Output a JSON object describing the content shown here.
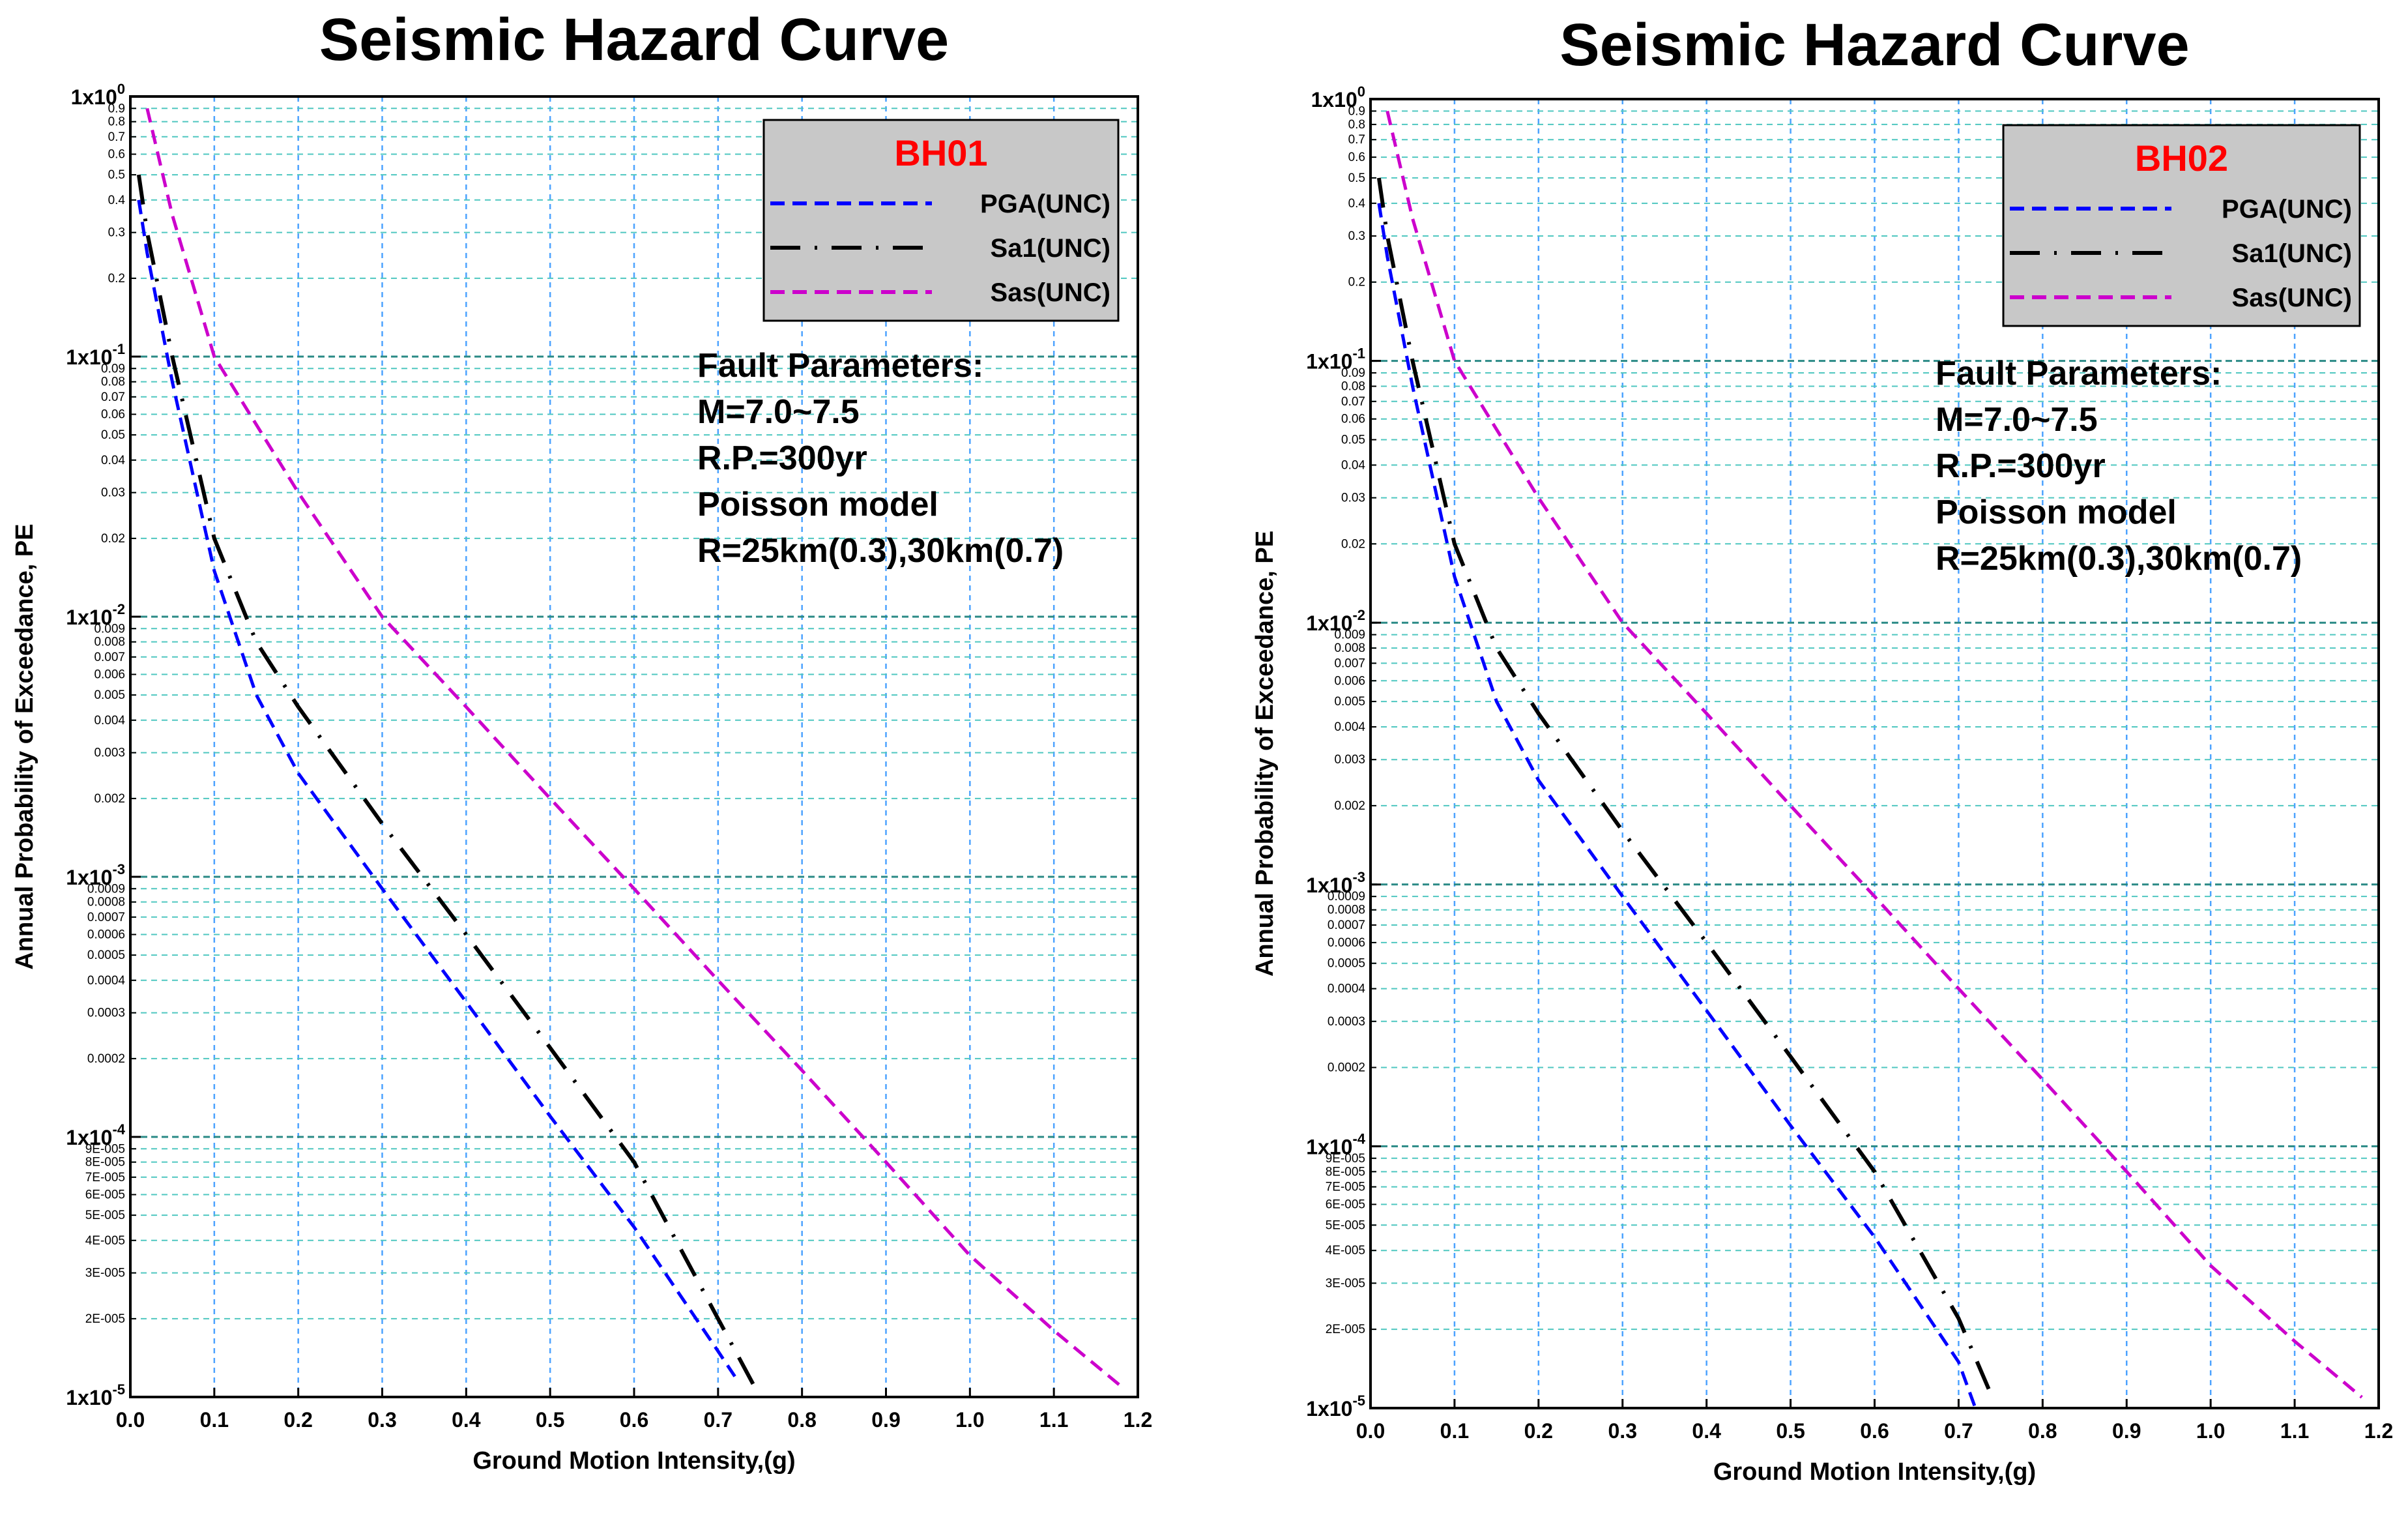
{
  "chart_data": [
    {
      "type": "line",
      "title": "Seismic Hazard Curve",
      "xlabel": "Ground Motion Intensity,(g)",
      "ylabel": "Annual Probability of Exceedance, PE",
      "xlim": [
        0.0,
        1.2
      ],
      "ylim": [
        1e-05,
        1
      ],
      "yscale": "log",
      "x_ticks": [
        "0.0",
        "0.1",
        "0.2",
        "0.3",
        "0.4",
        "0.5",
        "0.6",
        "0.7",
        "0.8",
        "0.9",
        "1.0",
        "1.1",
        "1.2"
      ],
      "y_major_labels": [
        {
          "value": 1,
          "base": "1x10",
          "exp": "0"
        },
        {
          "value": 0.1,
          "base": "1x10",
          "exp": "-1"
        },
        {
          "value": 0.01,
          "base": "1x10",
          "exp": "-2"
        },
        {
          "value": 0.001,
          "base": "1x10",
          "exp": "-3"
        },
        {
          "value": 0.0001,
          "base": "1x10",
          "exp": "-4"
        },
        {
          "value": 1e-05,
          "base": "1x10",
          "exp": "-5"
        }
      ],
      "y_minor_labels": [
        {
          "value": 0.9,
          "label": "0.9"
        },
        {
          "value": 0.8,
          "label": "0.8"
        },
        {
          "value": 0.7,
          "label": "0.7"
        },
        {
          "value": 0.6,
          "label": "0.6"
        },
        {
          "value": 0.5,
          "label": "0.5"
        },
        {
          "value": 0.4,
          "label": "0.4"
        },
        {
          "value": 0.3,
          "label": "0.3"
        },
        {
          "value": 0.2,
          "label": "0.2"
        },
        {
          "value": 0.09,
          "label": "0.09"
        },
        {
          "value": 0.08,
          "label": "0.08"
        },
        {
          "value": 0.07,
          "label": "0.07"
        },
        {
          "value": 0.06,
          "label": "0.06"
        },
        {
          "value": 0.05,
          "label": "0.05"
        },
        {
          "value": 0.04,
          "label": "0.04"
        },
        {
          "value": 0.03,
          "label": "0.03"
        },
        {
          "value": 0.02,
          "label": "0.02"
        },
        {
          "value": 0.009,
          "label": "0.009"
        },
        {
          "value": 0.008,
          "label": "0.008"
        },
        {
          "value": 0.007,
          "label": "0.007"
        },
        {
          "value": 0.006,
          "label": "0.006"
        },
        {
          "value": 0.005,
          "label": "0.005"
        },
        {
          "value": 0.004,
          "label": "0.004"
        },
        {
          "value": 0.003,
          "label": "0.003"
        },
        {
          "value": 0.002,
          "label": "0.002"
        },
        {
          "value": 0.0009,
          "label": "0.0009"
        },
        {
          "value": 0.0008,
          "label": "0.0008"
        },
        {
          "value": 0.0007,
          "label": "0.0007"
        },
        {
          "value": 0.0006,
          "label": "0.0006"
        },
        {
          "value": 0.0005,
          "label": "0.0005"
        },
        {
          "value": 0.0004,
          "label": "0.0004"
        },
        {
          "value": 0.0003,
          "label": "0.0003"
        },
        {
          "value": 0.0002,
          "label": "0.0002"
        },
        {
          "value": 9e-05,
          "label": "9E-005"
        },
        {
          "value": 8e-05,
          "label": "8E-005"
        },
        {
          "value": 7e-05,
          "label": "7E-005"
        },
        {
          "value": 6e-05,
          "label": "6E-005"
        },
        {
          "value": 5e-05,
          "label": "5E-005"
        },
        {
          "value": 4e-05,
          "label": "4E-005"
        },
        {
          "value": 3e-05,
          "label": "3E-005"
        },
        {
          "value": 2e-05,
          "label": "2E-005"
        }
      ],
      "legend": {
        "title": "BH01",
        "title_color": "#ff0000",
        "placement": "top-right"
      },
      "annotation": [
        "Fault Parameters:",
        "M=7.0~7.5",
        "R.P.=300yr",
        "Poisson model",
        "R=25km(0.3),30km(0.7)"
      ],
      "series": [
        {
          "name": "PGA(UNC)",
          "color": "#0000ff",
          "dash": "dash",
          "x": [
            0.01,
            0.02,
            0.05,
            0.1,
            0.15,
            0.2,
            0.3,
            0.4,
            0.5,
            0.6,
            0.7,
            0.72
          ],
          "y": [
            0.4,
            0.25,
            0.08,
            0.015,
            0.005,
            0.0025,
            0.0009,
            0.00033,
            0.00012,
            4.5e-05,
            1.5e-05,
            1.2e-05
          ]
        },
        {
          "name": "Sa1(UNC)",
          "color": "#000000",
          "dash": "dashdot",
          "x": [
            0.01,
            0.02,
            0.05,
            0.1,
            0.15,
            0.2,
            0.3,
            0.4,
            0.5,
            0.6,
            0.7,
            0.75
          ],
          "y": [
            0.5,
            0.3,
            0.1,
            0.02,
            0.008,
            0.0045,
            0.0016,
            0.0006,
            0.00022,
            8e-05,
            2e-05,
            1e-05
          ]
        },
        {
          "name": "Sas(UNC)",
          "color": "#cc00cc",
          "dash": "dash",
          "x": [
            0.02,
            0.05,
            0.1,
            0.2,
            0.3,
            0.4,
            0.5,
            0.6,
            0.7,
            0.8,
            0.9,
            1.0,
            1.1,
            1.18
          ],
          "y": [
            0.9,
            0.35,
            0.1,
            0.03,
            0.01,
            0.0045,
            0.002,
            0.0009,
            0.0004,
            0.00018,
            8e-05,
            3.5e-05,
            1.8e-05,
            1.1e-05
          ]
        }
      ]
    },
    {
      "type": "line",
      "title": "Seismic Hazard Curve",
      "xlabel": "Ground Motion Intensity,(g)",
      "ylabel": "Annual Probability of Exceedance, PE",
      "xlim": [
        0.0,
        1.2
      ],
      "ylim": [
        1e-05,
        1
      ],
      "yscale": "log",
      "x_ticks": [
        "0.0",
        "0.1",
        "0.2",
        "0.3",
        "0.4",
        "0.5",
        "0.6",
        "0.7",
        "0.8",
        "0.9",
        "1.0",
        "1.1",
        "1.2"
      ],
      "y_major_labels": [
        {
          "value": 1,
          "base": "1x10",
          "exp": "0"
        },
        {
          "value": 0.1,
          "base": "1x10",
          "exp": "-1"
        },
        {
          "value": 0.01,
          "base": "1x10",
          "exp": "-2"
        },
        {
          "value": 0.001,
          "base": "1x10",
          "exp": "-3"
        },
        {
          "value": 0.0001,
          "base": "1x10",
          "exp": "-4"
        },
        {
          "value": 1e-05,
          "base": "1x10",
          "exp": "-5"
        }
      ],
      "y_minor_labels": [
        {
          "value": 0.9,
          "label": "0.9"
        },
        {
          "value": 0.8,
          "label": "0.8"
        },
        {
          "value": 0.7,
          "label": "0.7"
        },
        {
          "value": 0.6,
          "label": "0.6"
        },
        {
          "value": 0.5,
          "label": "0.5"
        },
        {
          "value": 0.4,
          "label": "0.4"
        },
        {
          "value": 0.3,
          "label": "0.3"
        },
        {
          "value": 0.2,
          "label": "0.2"
        },
        {
          "value": 0.09,
          "label": "0.09"
        },
        {
          "value": 0.08,
          "label": "0.08"
        },
        {
          "value": 0.07,
          "label": "0.07"
        },
        {
          "value": 0.06,
          "label": "0.06"
        },
        {
          "value": 0.05,
          "label": "0.05"
        },
        {
          "value": 0.04,
          "label": "0.04"
        },
        {
          "value": 0.03,
          "label": "0.03"
        },
        {
          "value": 0.02,
          "label": "0.02"
        },
        {
          "value": 0.009,
          "label": "0.009"
        },
        {
          "value": 0.008,
          "label": "0.008"
        },
        {
          "value": 0.007,
          "label": "0.007"
        },
        {
          "value": 0.006,
          "label": "0.006"
        },
        {
          "value": 0.005,
          "label": "0.005"
        },
        {
          "value": 0.004,
          "label": "0.004"
        },
        {
          "value": 0.003,
          "label": "0.003"
        },
        {
          "value": 0.002,
          "label": "0.002"
        },
        {
          "value": 0.0009,
          "label": "0.0009"
        },
        {
          "value": 0.0008,
          "label": "0.0008"
        },
        {
          "value": 0.0007,
          "label": "0.0007"
        },
        {
          "value": 0.0006,
          "label": "0.0006"
        },
        {
          "value": 0.0005,
          "label": "0.0005"
        },
        {
          "value": 0.0004,
          "label": "0.0004"
        },
        {
          "value": 0.0003,
          "label": "0.0003"
        },
        {
          "value": 0.0002,
          "label": "0.0002"
        },
        {
          "value": 9e-05,
          "label": "9E-005"
        },
        {
          "value": 8e-05,
          "label": "8E-005"
        },
        {
          "value": 7e-05,
          "label": "7E-005"
        },
        {
          "value": 6e-05,
          "label": "6E-005"
        },
        {
          "value": 5e-05,
          "label": "5E-005"
        },
        {
          "value": 4e-05,
          "label": "4E-005"
        },
        {
          "value": 3e-05,
          "label": "3E-005"
        },
        {
          "value": 2e-05,
          "label": "2E-005"
        }
      ],
      "legend": {
        "title": "BH02",
        "title_color": "#ff0000",
        "placement": "top-right"
      },
      "annotation": [
        "Fault Parameters:",
        "M=7.0~7.5",
        "R.P.=300yr",
        "Poisson model",
        "R=25km(0.3),30km(0.7)"
      ],
      "series": [
        {
          "name": "PGA(UNC)",
          "color": "#0000ff",
          "dash": "dash",
          "x": [
            0.01,
            0.02,
            0.05,
            0.1,
            0.15,
            0.2,
            0.3,
            0.4,
            0.5,
            0.6,
            0.7,
            0.72
          ],
          "y": [
            0.4,
            0.25,
            0.08,
            0.015,
            0.005,
            0.0025,
            0.0009,
            0.00033,
            0.00012,
            4.5e-05,
            1.5e-05,
            1e-05
          ]
        },
        {
          "name": "Sa1(UNC)",
          "color": "#000000",
          "dash": "dashdot",
          "x": [
            0.01,
            0.02,
            0.05,
            0.1,
            0.15,
            0.2,
            0.3,
            0.4,
            0.5,
            0.6,
            0.7,
            0.74
          ],
          "y": [
            0.5,
            0.3,
            0.1,
            0.02,
            0.008,
            0.0045,
            0.0016,
            0.0006,
            0.00022,
            8e-05,
            2.2e-05,
            1.1e-05
          ]
        },
        {
          "name": "Sas(UNC)",
          "color": "#cc00cc",
          "dash": "dash",
          "x": [
            0.02,
            0.05,
            0.1,
            0.2,
            0.3,
            0.4,
            0.5,
            0.6,
            0.7,
            0.8,
            0.9,
            1.0,
            1.1,
            1.18
          ],
          "y": [
            0.9,
            0.35,
            0.1,
            0.03,
            0.01,
            0.0045,
            0.002,
            0.0009,
            0.0004,
            0.00018,
            8e-05,
            3.5e-05,
            1.8e-05,
            1.1e-05
          ]
        }
      ]
    }
  ]
}
